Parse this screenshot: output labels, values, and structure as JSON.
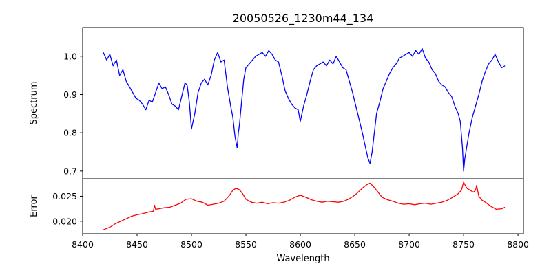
{
  "chart_data": [
    {
      "type": "line",
      "title": "20050526_1230m44_134",
      "xlabel": "",
      "ylabel": "Spectrum",
      "xlim": [
        8400,
        8805
      ],
      "ylim": [
        0.68,
        1.075
      ],
      "yticks": [
        0.7,
        0.8,
        0.9,
        1.0
      ],
      "ytick_labels": [
        "0.7",
        "0.8",
        "0.9",
        "1.0"
      ],
      "grid": false,
      "series": [
        {
          "color": "#0000ff",
          "x": [
            8419,
            8422,
            8425,
            8428,
            8431,
            8434,
            8437,
            8440,
            8443,
            8446,
            8449,
            8452,
            8455,
            8458,
            8461,
            8464,
            8467,
            8470,
            8473,
            8476,
            8479,
            8482,
            8485,
            8488,
            8491,
            8494,
            8496,
            8498,
            8500,
            8503,
            8506,
            8509,
            8512,
            8515,
            8518,
            8521,
            8524,
            8527,
            8530,
            8533,
            8536,
            8538,
            8540,
            8542,
            8543,
            8544,
            8546,
            8548,
            8550,
            8553,
            8556,
            8559,
            8562,
            8565,
            8568,
            8571,
            8574,
            8577,
            8580,
            8583,
            8586,
            8589,
            8592,
            8595,
            8598,
            8600,
            8603,
            8606,
            8609,
            8612,
            8615,
            8618,
            8621,
            8624,
            8627,
            8630,
            8633,
            8636,
            8639,
            8642,
            8645,
            8648,
            8651,
            8654,
            8657,
            8660,
            8662,
            8664,
            8666,
            8668,
            8670,
            8673,
            8676,
            8679,
            8682,
            8685,
            8688,
            8691,
            8694,
            8697,
            8700,
            8703,
            8706,
            8709,
            8712,
            8715,
            8718,
            8721,
            8724,
            8727,
            8730,
            8733,
            8736,
            8739,
            8742,
            8745,
            8747,
            8749,
            8750,
            8751,
            8753,
            8755,
            8758,
            8761,
            8764,
            8767,
            8770,
            8773,
            8776,
            8779,
            8782,
            8785,
            8788
          ],
          "y": [
            1.01,
            0.99,
            1.005,
            0.975,
            0.99,
            0.95,
            0.965,
            0.935,
            0.92,
            0.905,
            0.89,
            0.885,
            0.875,
            0.86,
            0.885,
            0.88,
            0.905,
            0.93,
            0.915,
            0.92,
            0.9,
            0.875,
            0.87,
            0.86,
            0.895,
            0.93,
            0.925,
            0.88,
            0.81,
            0.85,
            0.905,
            0.93,
            0.94,
            0.925,
            0.95,
            0.99,
            1.01,
            0.985,
            0.99,
            0.92,
            0.87,
            0.84,
            0.79,
            0.76,
            0.8,
            0.82,
            0.88,
            0.94,
            0.97,
            0.98,
            0.99,
            1.0,
            1.005,
            1.01,
            1.0,
            1.015,
            1.005,
            0.99,
            0.985,
            0.95,
            0.91,
            0.89,
            0.875,
            0.865,
            0.86,
            0.83,
            0.87,
            0.9,
            0.935,
            0.965,
            0.975,
            0.98,
            0.985,
            0.975,
            0.99,
            0.98,
            1.0,
            0.985,
            0.97,
            0.965,
            0.935,
            0.905,
            0.87,
            0.835,
            0.8,
            0.76,
            0.735,
            0.72,
            0.75,
            0.8,
            0.85,
            0.88,
            0.915,
            0.935,
            0.955,
            0.97,
            0.98,
            0.995,
            1.0,
            1.005,
            1.01,
            1.0,
            1.015,
            1.005,
            1.02,
            0.995,
            0.985,
            0.965,
            0.955,
            0.935,
            0.925,
            0.92,
            0.905,
            0.895,
            0.87,
            0.85,
            0.83,
            0.76,
            0.7,
            0.73,
            0.765,
            0.8,
            0.84,
            0.87,
            0.9,
            0.935,
            0.96,
            0.98,
            0.99,
            1.005,
            0.985,
            0.97,
            0.975
          ]
        }
      ]
    },
    {
      "type": "line",
      "title": "",
      "xlabel": "Wavelength",
      "ylabel": "Error",
      "xlim": [
        8400,
        8805
      ],
      "ylim": [
        0.0175,
        0.0285
      ],
      "xticks": [
        8400,
        8450,
        8500,
        8550,
        8600,
        8650,
        8700,
        8750,
        8800
      ],
      "xtick_labels": [
        "8400",
        "8450",
        "8500",
        "8550",
        "8600",
        "8650",
        "8700",
        "8750",
        "8800"
      ],
      "yticks": [
        0.02,
        0.025
      ],
      "ytick_labels": [
        "0.020",
        "0.025"
      ],
      "grid": false,
      "series": [
        {
          "color": "#ff0000",
          "x": [
            8419,
            8425,
            8430,
            8435,
            8440,
            8445,
            8450,
            8455,
            8460,
            8465,
            8466,
            8467,
            8470,
            8475,
            8480,
            8485,
            8490,
            8495,
            8500,
            8505,
            8510,
            8515,
            8520,
            8525,
            8530,
            8535,
            8538,
            8541,
            8544,
            8547,
            8550,
            8555,
            8560,
            8565,
            8570,
            8575,
            8580,
            8585,
            8590,
            8595,
            8600,
            8605,
            8610,
            8615,
            8620,
            8625,
            8630,
            8635,
            8640,
            8645,
            8650,
            8655,
            8658,
            8661,
            8664,
            8667,
            8670,
            8675,
            8680,
            8685,
            8690,
            8695,
            8700,
            8705,
            8710,
            8715,
            8720,
            8725,
            8730,
            8735,
            8740,
            8745,
            8748,
            8750,
            8753,
            8756,
            8759,
            8761,
            8762,
            8764,
            8767,
            8770,
            8775,
            8780,
            8785,
            8788
          ],
          "y": [
            0.0183,
            0.0188,
            0.0195,
            0.02,
            0.0205,
            0.021,
            0.0213,
            0.0215,
            0.0218,
            0.022,
            0.0232,
            0.0224,
            0.0225,
            0.0227,
            0.0228,
            0.0232,
            0.0236,
            0.0244,
            0.0245,
            0.024,
            0.0238,
            0.0232,
            0.0234,
            0.0236,
            0.024,
            0.0252,
            0.0262,
            0.0266,
            0.0263,
            0.0255,
            0.0244,
            0.0238,
            0.0236,
            0.0238,
            0.0235,
            0.0237,
            0.0236,
            0.0238,
            0.0242,
            0.0248,
            0.0252,
            0.0248,
            0.0243,
            0.024,
            0.0238,
            0.024,
            0.0239,
            0.0238,
            0.024,
            0.0245,
            0.0252,
            0.0262,
            0.0268,
            0.0273,
            0.0276,
            0.027,
            0.0262,
            0.0248,
            0.0243,
            0.024,
            0.0236,
            0.0234,
            0.0235,
            0.0233,
            0.0235,
            0.0236,
            0.0234,
            0.0236,
            0.0238,
            0.0242,
            0.0248,
            0.0255,
            0.0262,
            0.0278,
            0.0266,
            0.0262,
            0.0258,
            0.0262,
            0.0272,
            0.025,
            0.0242,
            0.0238,
            0.023,
            0.0224,
            0.0225,
            0.0228
          ]
        }
      ]
    }
  ]
}
